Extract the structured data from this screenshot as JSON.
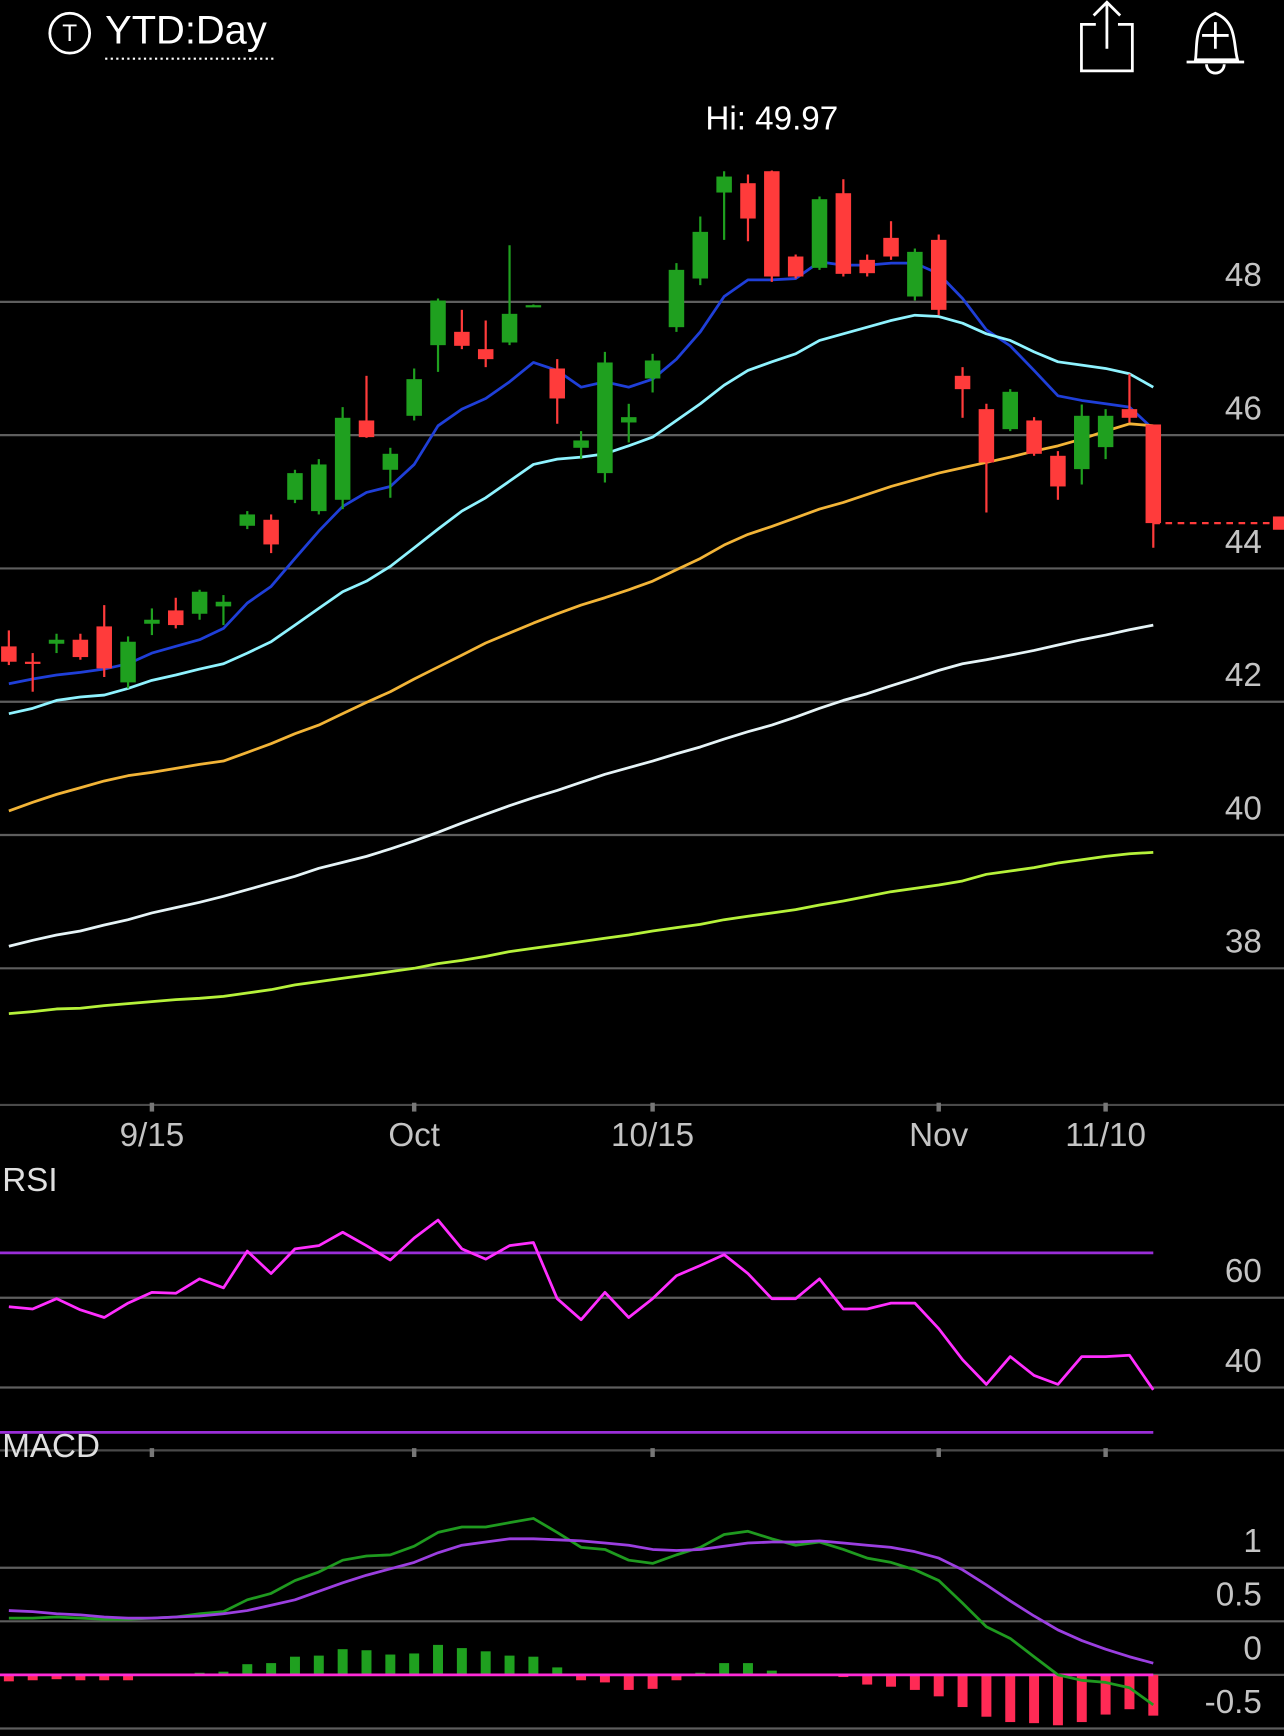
{
  "header": {
    "symbol_icon": "T",
    "timeframe": "YTD:Day"
  },
  "chart_data": [
    {
      "type": "candlestick",
      "annotation": "Hi: 49.97",
      "categories": [
        null,
        null,
        null,
        null,
        null,
        null,
        "9/15",
        null,
        null,
        null,
        null,
        null,
        null,
        null,
        null,
        null,
        null,
        "Oct",
        null,
        null,
        null,
        null,
        null,
        null,
        null,
        null,
        null,
        "10/15",
        null,
        null,
        null,
        null,
        null,
        null,
        null,
        null,
        null,
        null,
        null,
        "Nov",
        null,
        null,
        null,
        null,
        null,
        null,
        "11/10",
        null,
        null
      ],
      "open": [
        42.83,
        42.6,
        42.87,
        42.93,
        43.13,
        42.29,
        43.17,
        43.37,
        43.32,
        43.43,
        44.64,
        44.73,
        45.03,
        44.86,
        45.03,
        46.22,
        45.48,
        46.29,
        47.35,
        47.55,
        47.29,
        47.39,
        47.94,
        47.0,
        45.81,
        45.43,
        46.19,
        46.85,
        47.62,
        48.35,
        49.64,
        49.78,
        49.96,
        48.68,
        48.51,
        49.63,
        48.63,
        48.96,
        48.08,
        48.93,
        46.89,
        46.39,
        46.09,
        46.22,
        45.69,
        45.49,
        45.82,
        46.39,
        46.16
      ],
      "high": [
        43.07,
        42.73,
        43.02,
        43.02,
        43.45,
        42.98,
        43.4,
        43.56,
        43.68,
        43.6,
        44.86,
        44.81,
        45.48,
        45.64,
        46.42,
        46.89,
        45.81,
        47.0,
        48.05,
        47.88,
        47.72,
        48.85,
        47.96,
        47.14,
        46.06,
        47.25,
        46.47,
        47.22,
        48.58,
        49.28,
        49.96,
        49.91,
        49.97,
        48.71,
        49.58,
        49.84,
        48.71,
        49.21,
        48.8,
        49.01,
        47.02,
        46.47,
        46.69,
        46.27,
        45.76,
        46.46,
        46.39,
        46.92,
        46.16
      ],
      "low": [
        42.55,
        42.15,
        42.73,
        42.63,
        42.37,
        42.2,
        43.0,
        43.1,
        43.23,
        43.15,
        44.59,
        44.23,
        44.98,
        44.81,
        44.89,
        45.96,
        45.06,
        46.22,
        46.95,
        47.29,
        47.02,
        47.35,
        47.93,
        46.17,
        45.64,
        45.29,
        45.89,
        46.64,
        47.55,
        48.25,
        48.93,
        48.91,
        48.3,
        48.35,
        48.48,
        48.38,
        48.38,
        48.63,
        48.02,
        47.8,
        46.26,
        44.84,
        46.06,
        45.69,
        45.03,
        45.26,
        45.64,
        46.19,
        44.31
      ],
      "close": [
        42.6,
        42.57,
        42.93,
        42.67,
        42.5,
        42.9,
        43.23,
        43.15,
        43.65,
        43.5,
        44.81,
        44.36,
        45.43,
        45.56,
        46.26,
        45.97,
        45.72,
        46.84,
        48.02,
        47.34,
        47.14,
        47.82,
        47.95,
        46.55,
        45.92,
        47.09,
        46.27,
        47.12,
        48.48,
        49.05,
        49.88,
        49.25,
        48.38,
        48.38,
        49.54,
        48.42,
        48.43,
        48.68,
        48.75,
        47.88,
        46.69,
        45.59,
        46.65,
        45.72,
        45.23,
        46.29,
        46.29,
        46.26,
        44.68
      ],
      "up_color": "#1fa01f",
      "down_color": "#ff3b3b",
      "series": [
        {
          "color": "#1f3fd8",
          "values": [
            42.27,
            42.34,
            42.4,
            42.44,
            42.49,
            42.57,
            42.73,
            42.83,
            42.93,
            43.1,
            43.48,
            43.73,
            44.15,
            44.56,
            44.93,
            45.14,
            45.23,
            45.56,
            46.14,
            46.39,
            46.55,
            46.8,
            47.09,
            46.97,
            46.72,
            46.8,
            46.72,
            46.84,
            47.14,
            47.55,
            48.08,
            48.33,
            48.33,
            48.35,
            48.6,
            48.55,
            48.55,
            48.58,
            48.58,
            48.42,
            48.05,
            47.58,
            47.34,
            46.97,
            46.59,
            46.52,
            46.47,
            46.42,
            46.09
          ]
        },
        {
          "color": "#8ff3ff",
          "values": [
            41.82,
            41.9,
            42.02,
            42.07,
            42.1,
            42.2,
            42.32,
            42.4,
            42.49,
            42.57,
            42.73,
            42.9,
            43.15,
            43.4,
            43.65,
            43.81,
            44.03,
            44.31,
            44.59,
            44.86,
            45.06,
            45.31,
            45.56,
            45.64,
            45.67,
            45.72,
            45.84,
            45.97,
            46.22,
            46.47,
            46.75,
            46.97,
            47.1,
            47.22,
            47.42,
            47.52,
            47.62,
            47.72,
            47.8,
            47.78,
            47.68,
            47.52,
            47.42,
            47.25,
            47.1,
            47.05,
            47.0,
            46.92,
            46.72
          ]
        },
        {
          "color": "#f2b437",
          "values": [
            40.36,
            40.49,
            40.61,
            40.71,
            40.81,
            40.89,
            40.94,
            41.0,
            41.06,
            41.11,
            41.24,
            41.37,
            41.52,
            41.65,
            41.82,
            41.99,
            42.15,
            42.34,
            42.52,
            42.7,
            42.88,
            43.03,
            43.18,
            43.32,
            43.45,
            43.56,
            43.68,
            43.81,
            43.98,
            44.15,
            44.35,
            44.51,
            44.63,
            44.76,
            44.89,
            44.99,
            45.11,
            45.23,
            45.33,
            45.43,
            45.51,
            45.59,
            45.67,
            45.76,
            45.84,
            45.94,
            46.06,
            46.17,
            46.14
          ]
        },
        {
          "color": "#e6f4f7",
          "values": [
            38.33,
            38.42,
            38.5,
            38.56,
            38.65,
            38.73,
            38.83,
            38.91,
            38.99,
            39.08,
            39.18,
            39.28,
            39.38,
            39.5,
            39.59,
            39.68,
            39.79,
            39.91,
            40.04,
            40.18,
            40.31,
            40.44,
            40.56,
            40.67,
            40.79,
            40.91,
            41.01,
            41.11,
            41.22,
            41.32,
            41.44,
            41.55,
            41.65,
            41.77,
            41.9,
            42.02,
            42.12,
            42.24,
            42.35,
            42.47,
            42.57,
            42.63,
            42.7,
            42.77,
            42.85,
            42.93,
            43.0,
            43.08,
            43.15
          ]
        },
        {
          "color": "#b6f23a",
          "values": [
            37.32,
            37.35,
            37.39,
            37.4,
            37.44,
            37.47,
            37.5,
            37.53,
            37.55,
            37.58,
            37.63,
            37.68,
            37.75,
            37.8,
            37.85,
            37.9,
            37.95,
            38.0,
            38.07,
            38.12,
            38.18,
            38.25,
            38.3,
            38.35,
            38.4,
            38.45,
            38.5,
            38.56,
            38.61,
            38.66,
            38.73,
            38.78,
            38.83,
            38.88,
            38.95,
            39.01,
            39.08,
            39.15,
            39.2,
            39.25,
            39.31,
            39.41,
            39.46,
            39.51,
            39.58,
            39.63,
            39.68,
            39.72,
            39.74
          ]
        }
      ],
      "ylim": [
        35.95,
        51.2
      ],
      "yticks": [
        38,
        40,
        42,
        44,
        46,
        48
      ],
      "grid": true,
      "last_price_line": true
    },
    {
      "type": "line",
      "title": "RSI",
      "series": [
        {
          "color": "#ff2eff",
          "values": [
            58.0,
            57.5,
            59.8,
            57.3,
            55.6,
            58.8,
            61.2,
            61.0,
            64.2,
            62.2,
            70.4,
            65.4,
            70.9,
            71.6,
            74.6,
            71.6,
            68.4,
            73.3,
            77.3,
            70.9,
            68.6,
            71.6,
            72.3,
            59.8,
            55.1,
            61.2,
            55.6,
            59.8,
            64.9,
            67.2,
            69.6,
            65.4,
            59.8,
            59.8,
            64.2,
            57.5,
            57.5,
            58.8,
            58.8,
            53.1,
            46.2,
            40.7,
            46.9,
            42.7,
            40.7,
            46.9,
            46.9,
            47.2,
            39.5
          ]
        }
      ],
      "bands": [
        30,
        70
      ],
      "band_color": "#9a2ed8",
      "ylim": [
        26,
        81.5
      ],
      "yticks": [
        40,
        60
      ],
      "grid": true
    },
    {
      "type": "macd",
      "title": "MACD",
      "series": [
        {
          "color": "#1f9a1f",
          "values": [
            0.53,
            0.53,
            0.54,
            0.53,
            0.52,
            0.52,
            0.53,
            0.54,
            0.57,
            0.59,
            0.7,
            0.76,
            0.88,
            0.96,
            1.07,
            1.11,
            1.12,
            1.2,
            1.33,
            1.38,
            1.38,
            1.42,
            1.46,
            1.33,
            1.19,
            1.17,
            1.07,
            1.04,
            1.12,
            1.19,
            1.31,
            1.34,
            1.27,
            1.21,
            1.24,
            1.17,
            1.09,
            1.05,
            0.98,
            0.88,
            0.67,
            0.45,
            0.34,
            0.17,
            0,
            -0.05,
            -0.07,
            -0.12,
            -0.28
          ]
        },
        {
          "color": "#9b3fe0",
          "values": [
            0.6,
            0.59,
            0.57,
            0.56,
            0.54,
            0.53,
            0.53,
            0.54,
            0.55,
            0.57,
            0.6,
            0.65,
            0.7,
            0.78,
            0.86,
            0.93,
            0.99,
            1.05,
            1.14,
            1.21,
            1.24,
            1.27,
            1.27,
            1.26,
            1.25,
            1.23,
            1.21,
            1.17,
            1.16,
            1.17,
            1.2,
            1.23,
            1.24,
            1.24,
            1.25,
            1.23,
            1.21,
            1.19,
            1.15,
            1.09,
            0.98,
            0.84,
            0.69,
            0.55,
            0.42,
            0.32,
            0.24,
            0.17,
            0.11
          ]
        }
      ],
      "histogram": [
        -0.06,
        -0.05,
        -0.04,
        -0.05,
        -0.05,
        -0.05,
        -0.01,
        0,
        0.02,
        0.03,
        0.1,
        0.11,
        0.17,
        0.18,
        0.24,
        0.23,
        0.19,
        0.2,
        0.28,
        0.25,
        0.22,
        0.18,
        0.17,
        0.07,
        -0.05,
        -0.07,
        -0.14,
        -0.13,
        -0.05,
        0.02,
        0.11,
        0.11,
        0.04,
        0,
        -0.01,
        -0.02,
        -0.09,
        -0.11,
        -0.14,
        -0.2,
        -0.3,
        -0.39,
        -0.44,
        -0.45,
        -0.47,
        -0.44,
        -0.37,
        -0.32,
        -0.38
      ],
      "positive_color": "#1fa01f",
      "negative_color": "#ff2a55",
      "zero_color": "#ff2bd6",
      "ylim": [
        -0.57,
        1.94
      ],
      "yticks": [
        -0.5,
        0,
        0.5,
        1
      ],
      "grid": true
    }
  ]
}
